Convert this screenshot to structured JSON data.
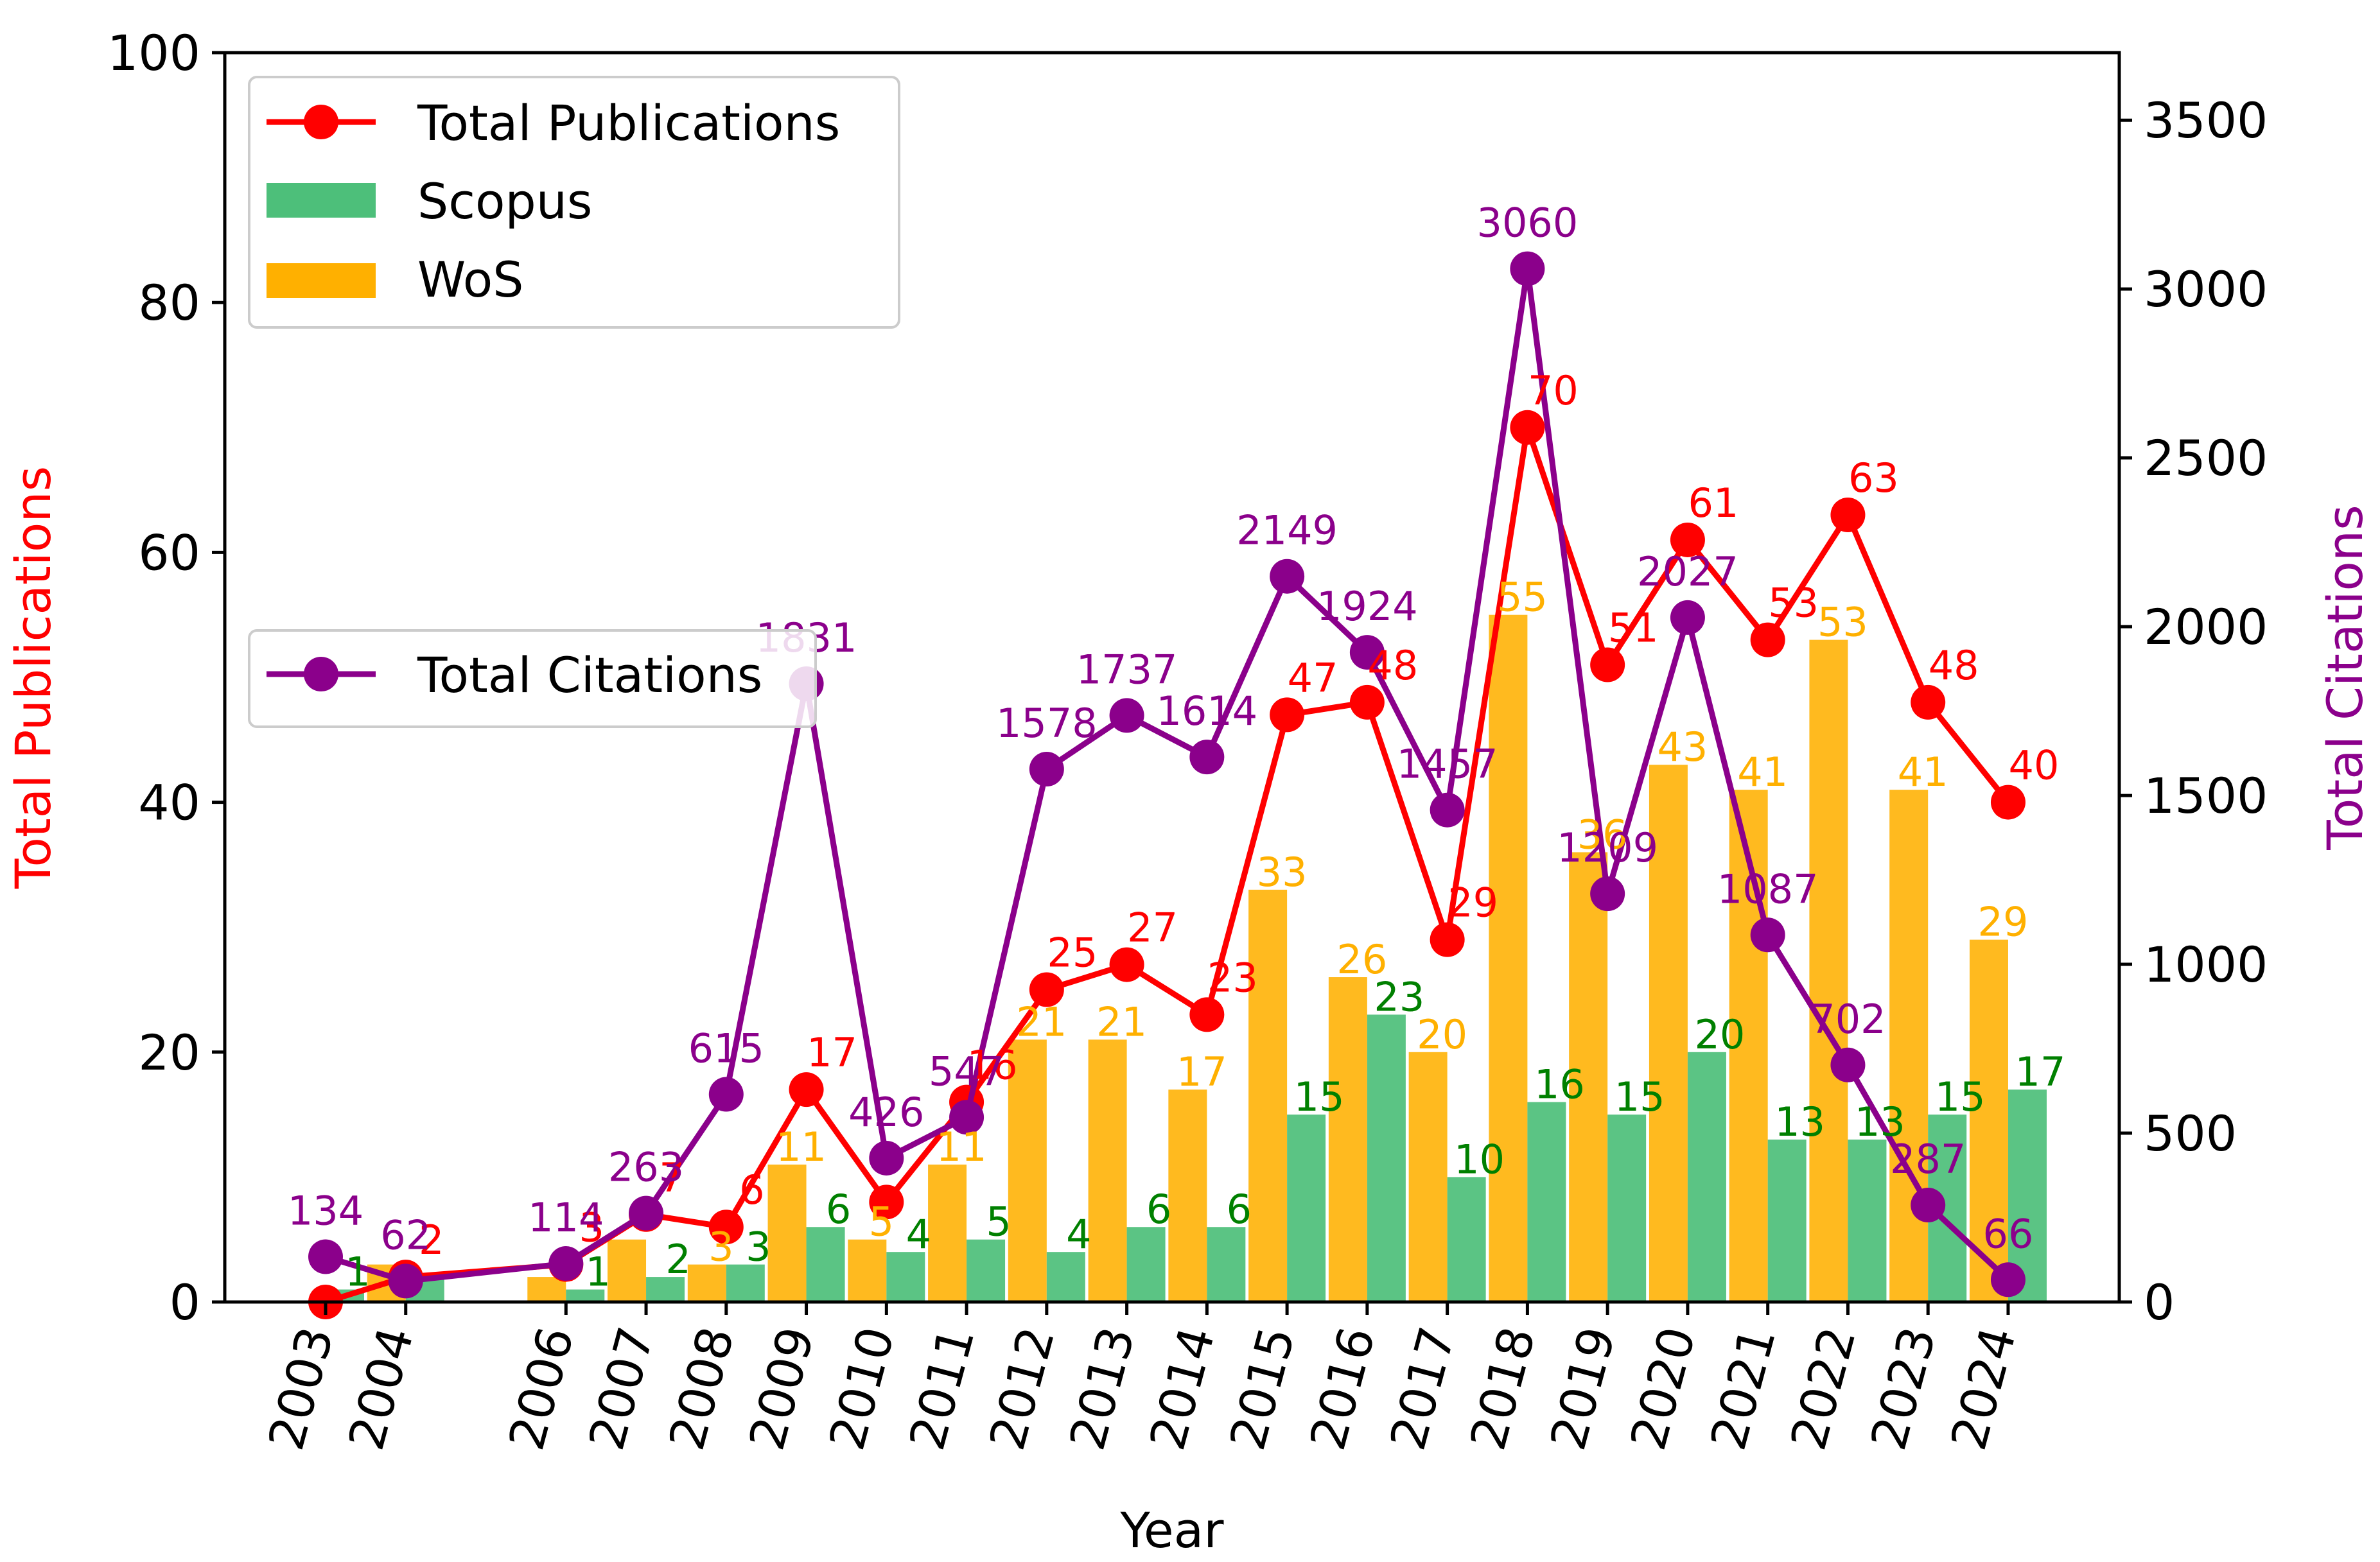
{
  "chart_data": {
    "type": "bar+line",
    "title": "",
    "xlabel": "Year",
    "ylabel_left": "Total Publications",
    "ylabel_right": "Total Citations",
    "ylim_left": [
      0,
      100
    ],
    "ylim_right": [
      0,
      3700
    ],
    "yticks_left": [
      "0",
      "20",
      "40",
      "60",
      "80",
      "100"
    ],
    "yticks_right": [
      "0",
      "500",
      "1000",
      "1500",
      "2000",
      "2500",
      "3000",
      "3500"
    ],
    "x": [
      2003,
      2004,
      2006,
      2007,
      2008,
      2009,
      2010,
      2011,
      2012,
      2013,
      2014,
      2015,
      2016,
      2017,
      2018,
      2019,
      2020,
      2021,
      2022,
      2023,
      2024
    ],
    "x_labels": [
      "2003",
      "2004",
      "2006",
      "2007",
      "2008",
      "2009",
      "2010",
      "2011",
      "2012",
      "2013",
      "2014",
      "2015",
      "2016",
      "2017",
      "2018",
      "2019",
      "2020",
      "2021",
      "2022",
      "2023",
      "2024"
    ],
    "series": [
      {
        "name": "WoS",
        "kind": "bar",
        "axis": "left",
        "color": "#FFB000",
        "values": [
          0,
          3,
          2,
          5,
          3,
          11,
          5,
          11,
          21,
          21,
          17,
          33,
          26,
          20,
          55,
          36,
          43,
          41,
          53,
          41,
          29
        ],
        "labels": [
          "",
          "",
          "",
          "",
          "3",
          "11",
          "5",
          "11",
          "21",
          "21",
          "17",
          "33",
          "26",
          "20",
          "55",
          "36",
          "43",
          "41",
          "53",
          "41",
          "29"
        ]
      },
      {
        "name": "Scopus",
        "kind": "bar",
        "axis": "left",
        "color": "#4DBF7A",
        "values": [
          1,
          2,
          1,
          2,
          3,
          6,
          4,
          5,
          4,
          6,
          6,
          15,
          23,
          10,
          16,
          15,
          20,
          13,
          13,
          15,
          17
        ],
        "labels": [
          "1",
          "",
          "1",
          "2",
          "3",
          "6",
          "4",
          "5",
          "4",
          "6",
          "6",
          "15",
          "23",
          "10",
          "16",
          "15",
          "20",
          "13",
          "13",
          "15",
          "17"
        ]
      },
      {
        "name": "Total Publications",
        "kind": "line",
        "axis": "left",
        "color": "#FF0000",
        "values": [
          0,
          2,
          3,
          7,
          6,
          17,
          8,
          16,
          25,
          27,
          23,
          47,
          48,
          29,
          70,
          51,
          61,
          53,
          63,
          48,
          40
        ],
        "labels": [
          "",
          "2",
          "3",
          "7",
          "6",
          "17",
          "",
          "16",
          "25",
          "27",
          "23",
          "47",
          "48",
          "29",
          "70",
          "51",
          "61",
          "53",
          "63",
          "48",
          "40"
        ]
      },
      {
        "name": "Total Citations",
        "kind": "line",
        "axis": "right",
        "color": "#8B008B",
        "values": [
          134,
          62,
          114,
          263,
          615,
          1831,
          426,
          547,
          1578,
          1737,
          1614,
          2149,
          1924,
          1457,
          3060,
          1209,
          2027,
          1087,
          702,
          287,
          66
        ],
        "labels": [
          "134",
          "62",
          "114",
          "263",
          "615",
          "1831",
          "426",
          "547",
          "1578",
          "1737",
          "1614",
          "2149",
          "1924",
          "1457",
          "3060",
          "1209",
          "2027",
          "1087",
          "702",
          "287",
          "66"
        ]
      }
    ],
    "legend_upper": [
      "Total Publications",
      "Scopus",
      "WoS"
    ],
    "legend_lower": [
      "Total Citations"
    ],
    "legend_placement": "top-left",
    "grid": false
  }
}
